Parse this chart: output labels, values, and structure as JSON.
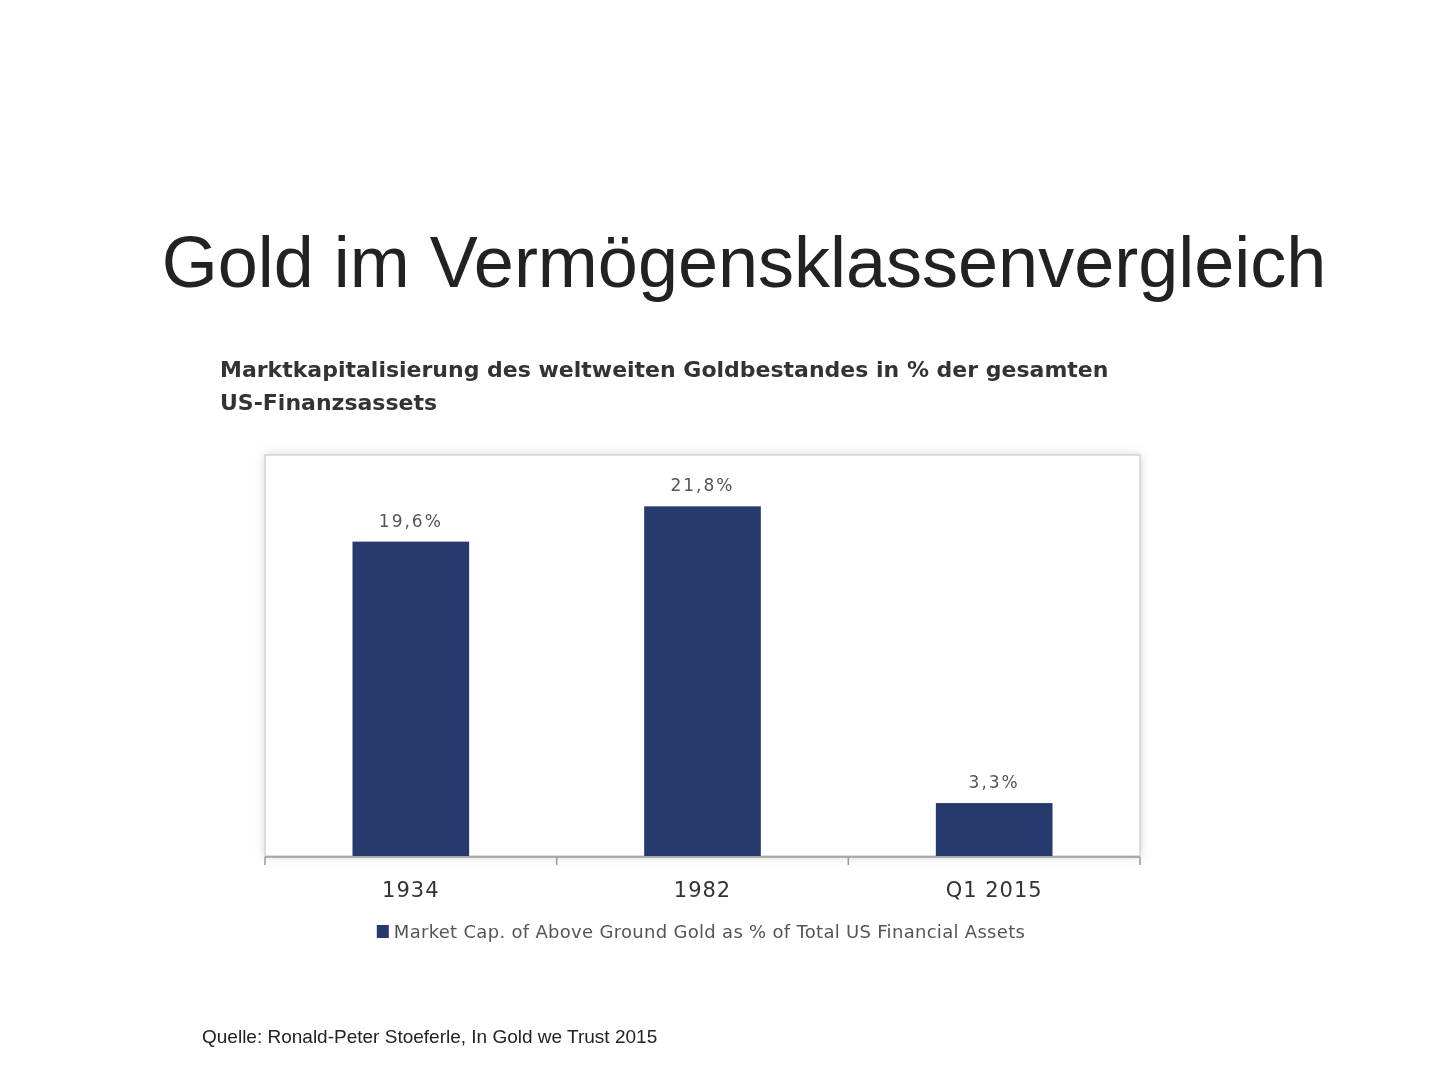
{
  "chart_data": {
    "type": "bar",
    "title": "Gold im Vermögensklassenvergleich",
    "subtitle": "Marktkapitalisierung des weltweiten Goldbestandes in % der gesamten US-Finanzsassets",
    "categories": [
      "1934",
      "1982",
      "Q1 2015"
    ],
    "series": [
      {
        "name": "Market Cap. of Above Ground Gold as % of Total US Financial Assets",
        "color": "#263a6e",
        "values": [
          19.6,
          21.8,
          3.3
        ],
        "value_labels": [
          "19,6%",
          "21,8%",
          "3,3%"
        ]
      }
    ],
    "ylim": [
      0,
      25
    ],
    "tick_labels": "x",
    "legend": "bottom",
    "annotations": [
      "Quelle: Ronald-Peter Stoeferle, In Gold we Trust 2015"
    ]
  }
}
